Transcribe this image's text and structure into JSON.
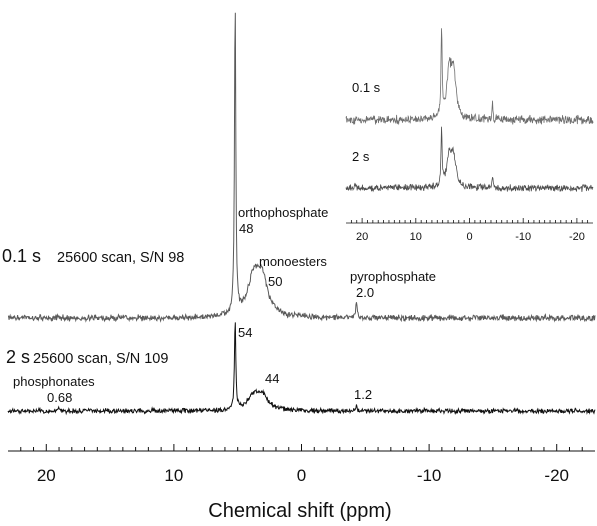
{
  "chart_data": {
    "type": "line",
    "xlabel": "Chemical shift (ppm)",
    "xlim": [
      23,
      -23
    ],
    "x_reversed": true,
    "x_ticks": [
      20,
      10,
      0,
      -10,
      -20
    ],
    "x_tick_labels": [
      "20",
      "10",
      "0",
      "-10",
      "-20"
    ],
    "grid": false,
    "series": [
      {
        "time_label": "0.1 s",
        "acq_label": "25600 scan, S/N 98",
        "color": "#5a5a5a",
        "peaks": [
          {
            "label": "orthophosphate",
            "value_label": "48",
            "ppm": 5.2,
            "height": 1.0
          },
          {
            "label": "monoesters",
            "value_label": "50",
            "ppm": 3.4,
            "height": 0.14
          },
          {
            "label": "pyrophosphate",
            "value_label": "2.0",
            "ppm": -4.3,
            "height": 0.045
          }
        ]
      },
      {
        "time_label": "2 s",
        "acq_label": "25600 scan, S/N 109",
        "color": "#111111",
        "peaks": [
          {
            "label": "orthophosphate",
            "value_label": "54",
            "ppm": 5.2,
            "height": 0.72
          },
          {
            "label": "monoesters",
            "value_label": "44",
            "ppm": 3.4,
            "height": 0.13
          },
          {
            "label": "pyrophosphate",
            "value_label": "1.2",
            "ppm": -4.3,
            "height": 0.04
          },
          {
            "label": "phosphonates",
            "value_label": "0.68",
            "ppm": 19.0,
            "height": 0.02
          }
        ]
      }
    ],
    "inset": {
      "xlim": [
        23,
        -23
      ],
      "x_ticks": [
        20,
        10,
        0,
        -10,
        -20
      ],
      "x_tick_labels": [
        "20",
        "10",
        "0",
        "-10",
        "-20"
      ],
      "traces": [
        {
          "time_label": "0.1 s",
          "color": "#6e6e6e"
        },
        {
          "time_label": "2 s",
          "color": "#505050"
        }
      ]
    }
  }
}
